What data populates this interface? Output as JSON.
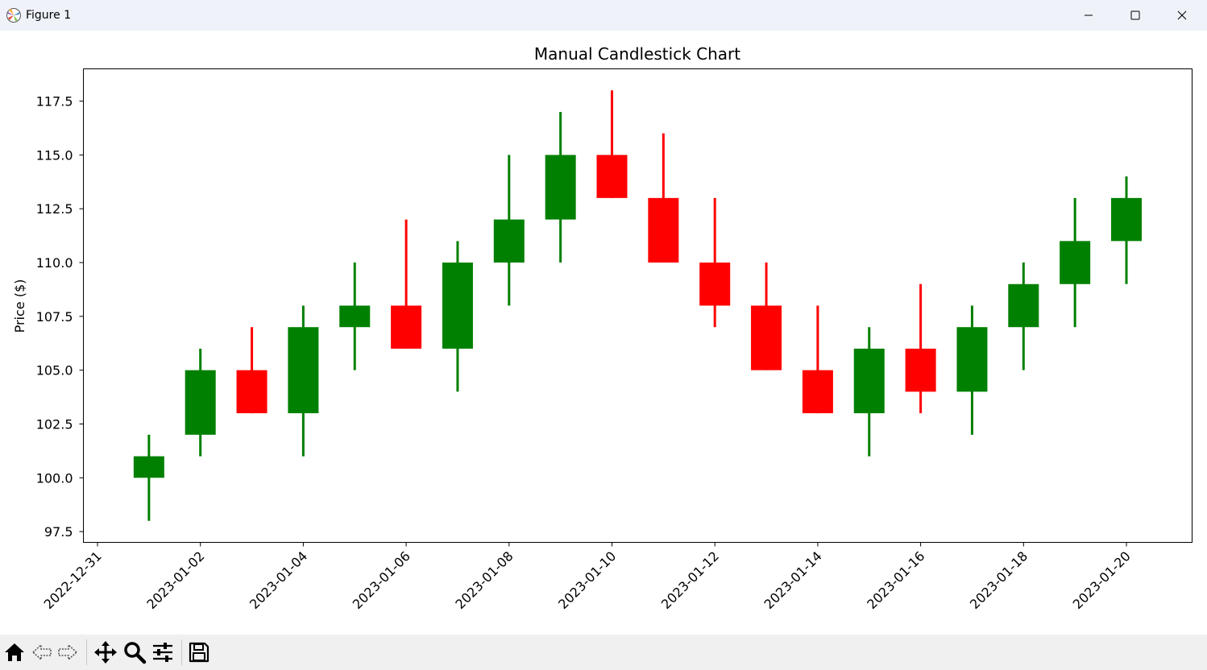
{
  "window": {
    "title": "Figure 1",
    "icons": [
      "matplotlib-logo-icon",
      "minimize-icon",
      "maximize-icon",
      "close-icon"
    ]
  },
  "toolbar": {
    "icons": [
      "home-icon",
      "back-arrow-icon",
      "forward-arrow-icon",
      "pan-move-icon",
      "zoom-magnifier-icon",
      "configure-subplots-icon",
      "save-floppy-icon"
    ]
  },
  "colors": {
    "up": "#008000",
    "down": "#ff0000"
  },
  "chart_data": {
    "type": "candlestick",
    "title": "Manual Candlestick Chart",
    "xlabel": "",
    "ylabel": "Price ($)",
    "ylim": [
      97,
      119
    ],
    "yticks": [
      "97.5",
      "100.0",
      "102.5",
      "105.0",
      "107.5",
      "110.0",
      "112.5",
      "115.0",
      "117.5"
    ],
    "xticks": [
      "2022-12-31",
      "2023-01-02",
      "2023-01-04",
      "2023-01-06",
      "2023-01-08",
      "2023-01-10",
      "2023-01-12",
      "2023-01-14",
      "2023-01-16",
      "2023-01-18",
      "2023-01-20"
    ],
    "grid": false,
    "candles": [
      {
        "date": "2023-01-01",
        "open": 100,
        "high": 102,
        "low": 98,
        "close": 101
      },
      {
        "date": "2023-01-02",
        "open": 102,
        "high": 106,
        "low": 101,
        "close": 105
      },
      {
        "date": "2023-01-03",
        "open": 105,
        "high": 107,
        "low": 103,
        "close": 103
      },
      {
        "date": "2023-01-04",
        "open": 103,
        "high": 108,
        "low": 101,
        "close": 107
      },
      {
        "date": "2023-01-05",
        "open": 107,
        "high": 110,
        "low": 105,
        "close": 108
      },
      {
        "date": "2023-01-06",
        "open": 108,
        "high": 112,
        "low": 106,
        "close": 106
      },
      {
        "date": "2023-01-07",
        "open": 106,
        "high": 111,
        "low": 104,
        "close": 110
      },
      {
        "date": "2023-01-08",
        "open": 110,
        "high": 115,
        "low": 108,
        "close": 112
      },
      {
        "date": "2023-01-09",
        "open": 112,
        "high": 117,
        "low": 110,
        "close": 115
      },
      {
        "date": "2023-01-10",
        "open": 115,
        "high": 118,
        "low": 113,
        "close": 113
      },
      {
        "date": "2023-01-11",
        "open": 113,
        "high": 116,
        "low": 110,
        "close": 110
      },
      {
        "date": "2023-01-12",
        "open": 110,
        "high": 113,
        "low": 107,
        "close": 108
      },
      {
        "date": "2023-01-13",
        "open": 108,
        "high": 110,
        "low": 105,
        "close": 105
      },
      {
        "date": "2023-01-14",
        "open": 105,
        "high": 108,
        "low": 103,
        "close": 103
      },
      {
        "date": "2023-01-15",
        "open": 103,
        "high": 107,
        "low": 101,
        "close": 106
      },
      {
        "date": "2023-01-16",
        "open": 106,
        "high": 109,
        "low": 103,
        "close": 104
      },
      {
        "date": "2023-01-17",
        "open": 104,
        "high": 108,
        "low": 102,
        "close": 107
      },
      {
        "date": "2023-01-18",
        "open": 107,
        "high": 110,
        "low": 105,
        "close": 109
      },
      {
        "date": "2023-01-19",
        "open": 109,
        "high": 113,
        "low": 107,
        "close": 111
      },
      {
        "date": "2023-01-20",
        "open": 111,
        "high": 114,
        "low": 109,
        "close": 113
      }
    ]
  }
}
